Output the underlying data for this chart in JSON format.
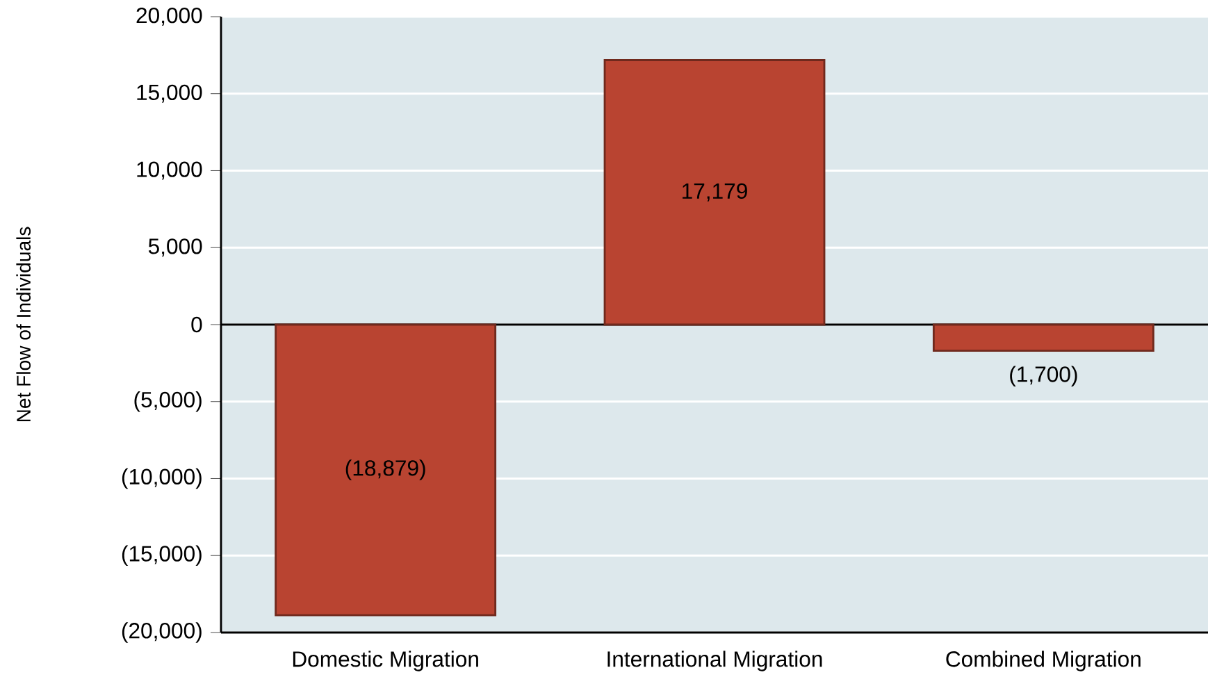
{
  "chart_data": {
    "type": "bar",
    "ylabel": "Net Flow of Individuals",
    "categories": [
      "Domestic Migration",
      "International Migration",
      "Combined Migration"
    ],
    "values": [
      -18879,
      17179,
      -1700
    ],
    "value_labels": [
      "(18,879)",
      "17,179",
      "(1,700)"
    ],
    "color": "#b94431",
    "ylim": [
      -20000,
      20000
    ],
    "yticks": [
      {
        "value": -20000,
        "label": "(20,000)"
      },
      {
        "value": -15000,
        "label": "(15,000)"
      },
      {
        "value": -10000,
        "label": "(10,000)"
      },
      {
        "value": -5000,
        "label": "(5,000)"
      },
      {
        "value": 0,
        "label": "0"
      },
      {
        "value": 5000,
        "label": "5,000"
      },
      {
        "value": 10000,
        "label": "10,000"
      },
      {
        "value": 15000,
        "label": "15,000"
      },
      {
        "value": 20000,
        "label": "20,000"
      }
    ],
    "grid": "y"
  }
}
